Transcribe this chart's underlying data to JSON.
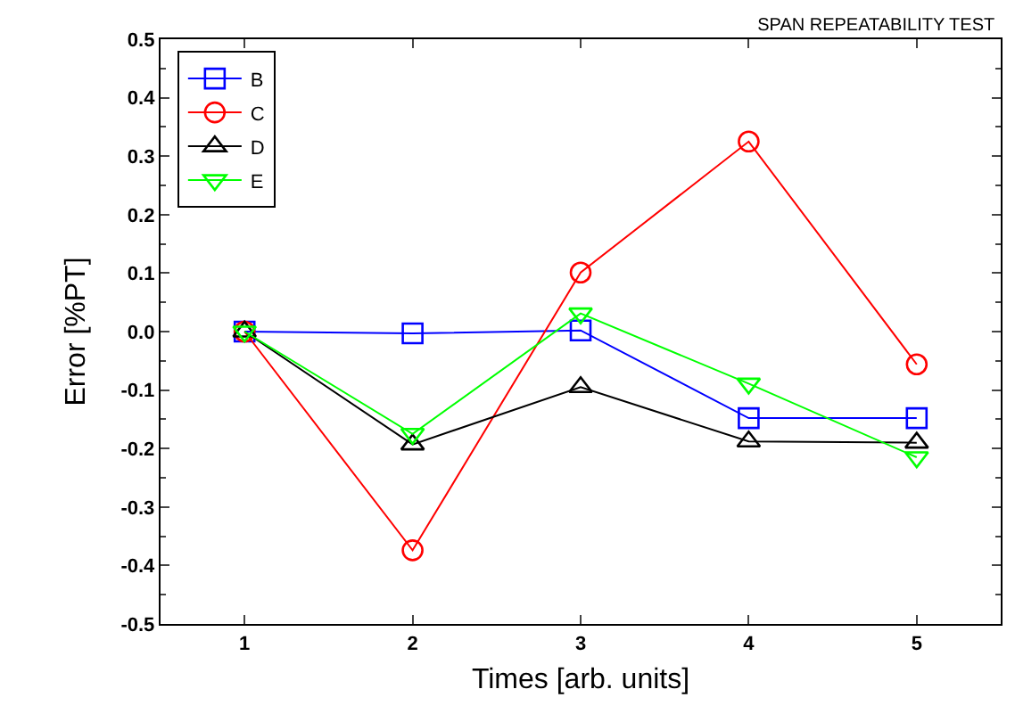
{
  "chart_data": {
    "type": "line",
    "title": "SPAN REPEATABILITY TEST",
    "xlabel": "Times [arb. units]",
    "ylabel": "Error [%PT]",
    "x": [
      1,
      2,
      3,
      4,
      5
    ],
    "series": [
      {
        "name": "B",
        "color": "#0000ff",
        "marker": "square",
        "values": [
          0,
          -0.003,
          0.002,
          -0.148,
          -0.148
        ]
      },
      {
        "name": "C",
        "color": "#ff0000",
        "marker": "circle",
        "values": [
          0,
          -0.374,
          0.101,
          0.325,
          -0.056
        ]
      },
      {
        "name": "D",
        "color": "#000000",
        "marker": "triangle",
        "values": [
          0,
          -0.193,
          -0.095,
          -0.188,
          -0.19
        ]
      },
      {
        "name": "E",
        "color": "#00ff00",
        "marker": "triangle-down",
        "values": [
          0,
          -0.175,
          0.031,
          -0.089,
          -0.215
        ]
      }
    ],
    "xlim": [
      0.5,
      5.5
    ],
    "xticks": [
      1,
      2,
      3,
      4,
      5
    ],
    "ylim": [
      -0.5,
      0.5
    ],
    "yticks": [
      -0.5,
      -0.4,
      -0.3,
      -0.2,
      -0.1,
      {
        "value": 0,
        "label": "0.0"
      },
      0.1,
      0.2,
      0.3,
      0.4,
      0.5
    ],
    "legend": "top left",
    "line_style": "solid"
  }
}
